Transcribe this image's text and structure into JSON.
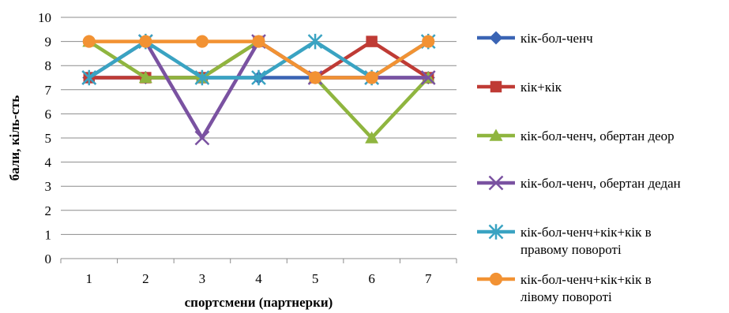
{
  "chart_data": {
    "type": "line",
    "xlabel": "спортсмени (партнерки)",
    "ylabel": "бали, кіль-сть",
    "x": [
      "1",
      "2",
      "3",
      "4",
      "5",
      "6",
      "7"
    ],
    "ylim": [
      0,
      10
    ],
    "yticks": [
      "0",
      "1",
      "2",
      "3",
      "4",
      "5",
      "6",
      "7",
      "8",
      "9",
      "10"
    ],
    "grid": "horizontal",
    "legend_position": "right",
    "series": [
      {
        "name": "кік-бол-ченч",
        "color": "#3a64b4",
        "marker": "diamond",
        "values": [
          7.5,
          7.5,
          7.5,
          7.5,
          7.5,
          7.5,
          7.5
        ]
      },
      {
        "name": "кік+кік",
        "color": "#bf3b35",
        "marker": "square",
        "values": [
          7.5,
          7.5,
          7.5,
          9,
          7.5,
          9,
          7.5
        ]
      },
      {
        "name": "кік-бол-ченч, обертан деор",
        "color": "#8fb53f",
        "marker": "triangle",
        "values": [
          9,
          7.5,
          7.5,
          9,
          7.5,
          5,
          7.5
        ]
      },
      {
        "name": "кік-бол-ченч, обертан дедан",
        "color": "#7a52a1",
        "marker": "x",
        "values": [
          7.5,
          9,
          5,
          9,
          7.5,
          7.5,
          7.5
        ]
      },
      {
        "name_lines": [
          "кік-бол-ченч+кік+кік в",
          "правому повороті"
        ],
        "color": "#3aa3c2",
        "marker": "star",
        "values": [
          7.5,
          9,
          7.5,
          7.5,
          9,
          7.5,
          9
        ]
      },
      {
        "name_lines": [
          "кік-бол-ченч+кік+кік в",
          "лівому повороті"
        ],
        "color": "#f29233",
        "marker": "circle",
        "values": [
          9,
          9,
          9,
          9,
          7.5,
          7.5,
          9
        ]
      }
    ]
  }
}
